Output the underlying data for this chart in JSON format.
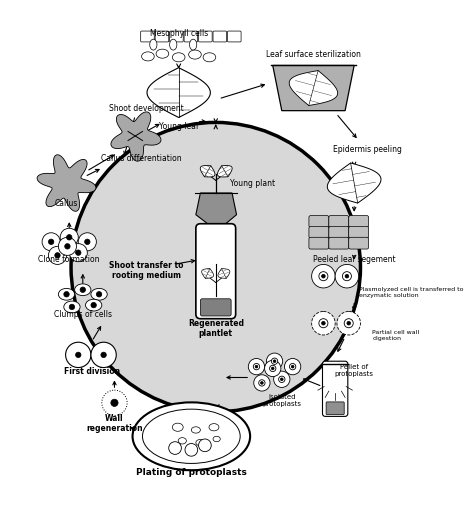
{
  "bg_color": "#ffffff",
  "labels": {
    "mesophyll_cells": "Mesophyll cells",
    "young_leaf": "Young leaf",
    "leaf_surface_sterilization": "Leaf surface sterilization",
    "epidermis_peeling": "Epidermis peeling",
    "peeled_leaf_segment": "Peeled leaf segement",
    "plasmolyzed_cell": "Plasmolyzed cell is transferred to\nenzymatic solution",
    "partial_cell_wall": "Partial cell wall\ndigestion",
    "pellet_of_protoplasts": "Pellet of\nprotoplasts",
    "isolated_protoplasts": "Isolated\nprotoplasts",
    "plating_of_protoplasts": "Plating of protoplasts",
    "wall_regeneration": "Wall\nregeneration",
    "first_division": "First division",
    "clumps_of_cells": "Clumps of cells",
    "clone_formation": "Clone formation",
    "callus": "Callus",
    "callus_differentiation": "Callus differentiation",
    "shoot_development": "Shoot development",
    "young_plant": "Young plant",
    "regenerated_plantlet": "Regenerated\nplantlet",
    "shoot_transfer": "Shoot transfer to\nrooting medium"
  }
}
